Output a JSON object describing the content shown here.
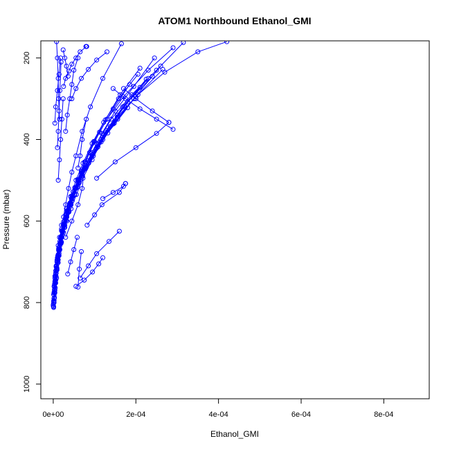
{
  "chart_data": {
    "type": "line",
    "title": "ATOM1 Northbound Ethanol_GMI",
    "xlabel": "Ethanol_GMI",
    "ylabel": "Pressure (mbar)",
    "xlim": [
      -3e-05,
      0.00091
    ],
    "ylim": [
      1036,
      158
    ],
    "y_inverted": true,
    "x_ticks": [
      0,
      0.0002,
      0.0004,
      0.0006,
      0.0008
    ],
    "x_tick_labels": [
      "0e+00",
      "2e-04",
      "4e-04",
      "6e-04",
      "8e-04"
    ],
    "y_ticks": [
      200,
      400,
      600,
      800,
      1000
    ],
    "y_tick_labels": [
      "200",
      "400",
      "600",
      "800",
      "1000"
    ],
    "grid": false,
    "color": "#0000ff",
    "marker": "open-circle",
    "series": [
      {
        "x": [
          1e-06,
          2e-06,
          3e-06,
          4e-06,
          6e-06,
          8e-06,
          1e-05,
          1.3e-05,
          1.6e-05,
          2e-05,
          2.5e-05,
          3e-05,
          3.7e-05,
          4.5e-05,
          5.5e-05,
          7e-05,
          9e-05,
          0.00012,
          0.000165
        ],
        "y": [
          810,
          790,
          770,
          750,
          730,
          710,
          690,
          670,
          650,
          620,
          590,
          560,
          520,
          480,
          440,
          380,
          320,
          250,
          165
        ]
      },
      {
        "x": [
          0.0,
          1e-06,
          2e-06,
          4e-06,
          7e-06,
          1e-05,
          1.4e-05,
          1.9e-05,
          2.6e-05,
          3.5e-05,
          4.7e-05,
          6.2e-05,
          8e-05,
          0.000105,
          0.00014,
          0.00019,
          0.00025,
          0.000315
        ],
        "y": [
          805,
          780,
          760,
          735,
          710,
          690,
          665,
          640,
          610,
          580,
          545,
          505,
          460,
          410,
          350,
          290,
          230,
          162
        ]
      },
      {
        "x": [
          2e-06,
          4e-06,
          6e-06,
          9e-06,
          1.2e-05,
          1.6e-05,
          2.1e-05,
          2.8e-05,
          3.6e-05,
          4.6e-05,
          6e-05,
          7.8e-05,
          0.0001,
          0.00013,
          0.00017,
          0.00023,
          0.00029
        ],
        "y": [
          795,
          770,
          745,
          720,
          695,
          670,
          640,
          610,
          575,
          540,
          500,
          455,
          405,
          350,
          295,
          230,
          175
        ]
      },
      {
        "x": [
          1e-06,
          3e-06,
          5e-06,
          7e-06,
          1e-05,
          1.4e-05,
          1.9e-05,
          2.5e-05,
          3.3e-05,
          4.3e-05,
          5.6e-05,
          7.2e-05,
          9.4e-05,
          0.00012,
          0.000155,
          0.000205,
          0.00027,
          0.00035,
          0.00042
        ],
        "y": [
          800,
          775,
          752,
          728,
          704,
          680,
          655,
          628,
          600,
          570,
          535,
          495,
          450,
          400,
          345,
          290,
          235,
          185,
          160
        ]
      },
      {
        "x": [
          3e-06,
          5e-06,
          8e-06,
          1.2e-05,
          1.7e-05,
          2.3e-05,
          3.1e-05,
          4.1e-05,
          5.4e-05,
          7e-05,
          9.2e-05,
          0.000118,
          0.00015,
          0.000195,
          0.000245
        ],
        "y": [
          760,
          735,
          710,
          682,
          655,
          625,
          592,
          558,
          520,
          480,
          435,
          385,
          330,
          270,
          200
        ]
      },
      {
        "x": [
          2e-06,
          4e-06,
          6e-06,
          9e-06,
          1.3e-05,
          1.8e-05,
          2.5e-05,
          3.4e-05,
          4.5e-05,
          5.9e-05,
          7.6e-05,
          9.8e-05,
          0.000126,
          0.000162,
          0.00021
        ],
        "y": [
          775,
          748,
          722,
          696,
          668,
          640,
          608,
          575,
          538,
          498,
          455,
          405,
          352,
          290,
          225
        ]
      },
      {
        "x": [
          4e-06,
          7e-06,
          1.1e-05,
          1.6e-05,
          2.2e-05,
          3e-05,
          4e-05,
          5.2e-05,
          6.8e-05,
          8.8e-05,
          0.000112,
          0.000145,
          0.000185
        ],
        "y": [
          740,
          712,
          685,
          655,
          624,
          592,
          556,
          518,
          478,
          432,
          382,
          325,
          265
        ]
      },
      {
        "x": [
          3e-06,
          6e-06,
          9e-06,
          1.3e-05,
          1.8e-05,
          2.4e-05,
          3.2e-05,
          4.2e-05,
          5.5e-05,
          7.2e-05,
          9.4e-05,
          0.000122,
          0.000158,
          0.000205
        ],
        "y": [
          755,
          728,
          700,
          672,
          642,
          610,
          576,
          540,
          500,
          458,
          410,
          358,
          300,
          240
        ]
      },
      {
        "x": [
          1e-05,
          1.5e-05,
          2.2e-05,
          3.1e-05,
          4.3e-05,
          5.8e-05,
          7.8e-05,
          0.000104,
          0.000138,
          0.00018,
          0.00024
        ],
        "y": [
          700,
          668,
          634,
          598,
          560,
          518,
          472,
          422,
          368,
          308,
          245
        ]
      },
      {
        "x": [
          8e-06,
          1.3e-05,
          1.9e-05,
          2.7e-05,
          3.8e-05,
          5.2e-05,
          7e-05,
          9.4e-05,
          0.000126,
          0.000168,
          0.000225
        ],
        "y": [
          715,
          684,
          650,
          614,
          576,
          534,
          488,
          438,
          382,
          320,
          252
        ]
      },
      {
        "x": [
          1.2e-05,
          2e-05,
          3e-05,
          4.4e-05,
          6.2e-05,
          8.5e-05,
          0.000116,
          0.000156,
          0.00021
        ],
        "y": [
          660,
          624,
          585,
          545,
          500,
          452,
          400,
          340,
          272
        ]
      },
      {
        "x": [
          6e-06,
          1e-05,
          1.5e-05,
          2.2e-05,
          3.1e-05,
          4.3e-05,
          5.9e-05,
          8e-05,
          0.000108,
          0.000145,
          0.000195,
          0.00026
        ],
        "y": [
          730,
          700,
          668,
          634,
          598,
          558,
          515,
          468,
          418,
          362,
          300,
          220
        ]
      },
      {
        "x": [
          1.5e-05,
          2.5e-05,
          3.8e-05,
          5.5e-05,
          7.8e-05,
          0.000108,
          0.000148,
          0.0002,
          0.000265
        ],
        "y": [
          640,
          602,
          562,
          518,
          470,
          418,
          360,
          295,
          228
        ]
      },
      {
        "x": [
          2e-05,
          3.2e-05,
          4.8e-05,
          6.8e-05,
          9.4e-05,
          0.000128,
          0.000172,
          0.00023
        ],
        "y": [
          610,
          570,
          528,
          482,
          432,
          378,
          318,
          250
        ]
      },
      {
        "x": [
          5e-06,
          9e-06,
          1.4e-05,
          2e-05,
          2.8e-05,
          3.8e-05,
          5.2e-05,
          7.1e-05,
          9.7e-05,
          0.000132,
          0.00018
        ],
        "y": [
          745,
          716,
          685,
          652,
          616,
          578,
          536,
          490,
          440,
          384,
          322
        ]
      },
      {
        "x": [
          7e-06,
          1.1e-05,
          1.6e-05,
          2.3e-05,
          3.3e-05,
          4.6e-05,
          6.3e-05,
          8.6e-05,
          0.000116,
          0.000156
        ],
        "y": [
          722,
          692,
          660,
          626,
          590,
          550,
          506,
          458,
          406,
          350
        ]
      },
      {
        "x": [
          1e-06,
          2e-06,
          3e-06,
          4e-06,
          5e-06,
          6e-06,
          8e-06
        ],
        "y": [
          812,
          800,
          788,
          776,
          764,
          752,
          740
        ]
      },
      {
        "x": [
          0.0,
          1e-06,
          2e-06,
          3e-06,
          5e-06,
          7e-06,
          9e-06,
          1.2e-05
        ],
        "y": [
          808,
          796,
          782,
          768,
          752,
          736,
          720,
          702
        ]
      },
      {
        "x": [
          2e-06,
          2e-06,
          3e-06,
          5e-06,
          6e-06,
          8e-06,
          1.1e-05,
          1.4e-05,
          1.8e-05
        ],
        "y": [
          790,
          776,
          762,
          746,
          730,
          712,
          694,
          674,
          652
        ]
      },
      {
        "x": [
          5.5e-05,
          7.5e-05,
          9.5e-05,
          0.00011,
          0.00012
        ],
        "y": [
          760,
          745,
          725,
          705,
          690
        ]
      },
      {
        "x": [
          6.5e-05,
          8.5e-05,
          0.000105,
          0.000135,
          0.00016
        ],
        "y": [
          740,
          710,
          680,
          650,
          625
        ]
      },
      {
        "x": [
          6e-05,
          6.3e-05,
          6.8e-05
        ],
        "y": [
          762,
          718,
          675
        ]
      },
      {
        "x": [
          8.2e-05,
          0.0001,
          0.000118,
          0.00016,
          0.000175
        ],
        "y": [
          610,
          585,
          560,
          530,
          508
        ]
      },
      {
        "x": [
          0.00012,
          0.000145,
          0.00017,
          0.000175
        ],
        "y": [
          545,
          530,
          515,
          508
        ]
      },
      {
        "x": [
          0.000105,
          0.00015,
          0.0002,
          0.00025,
          0.00028
        ],
        "y": [
          495,
          455,
          420,
          385,
          358
        ]
      },
      {
        "x": [
          0.00029,
          0.00025,
          0.00021,
          0.000175,
          0.000145
        ],
        "y": [
          375,
          350,
          325,
          300,
          275
        ]
      },
      {
        "x": [
          0.00028,
          0.00024,
          0.0002,
          0.00017
        ],
        "y": [
          358,
          330,
          300,
          275
        ]
      },
      {
        "x": [
          6e-05,
          6.5e-05,
          7e-05,
          8e-05
        ],
        "y": [
          470,
          440,
          400,
          350
        ]
      },
      {
        "x": [
          2.5e-05,
          3e-05,
          3.8e-05,
          4.5e-05,
          5.5e-05,
          6.5e-05,
          8e-05
        ],
        "y": [
          270,
          250,
          232,
          215,
          200,
          185,
          172
        ]
      },
      {
        "x": [
          8e-05,
          7.9e-05,
          8.1e-05
        ],
        "y": [
          172,
          172,
          172
        ]
      },
      {
        "x": [
          3e-05,
          4.5e-05,
          6e-05,
          7e-05,
          7.5e-05
        ],
        "y": [
          640,
          600,
          560,
          520,
          470
        ]
      },
      {
        "x": [
          3.5e-05,
          4.2e-05,
          5e-05,
          5.8e-05
        ],
        "y": [
          730,
          700,
          670,
          640
        ]
      },
      {
        "x": [
          4e-06,
          6e-06,
          1e-05,
          1.4e-05,
          1.8e-05
        ],
        "y": [
          360,
          320,
          280,
          240,
          200
        ]
      },
      {
        "x": [
          8e-06,
          1e-05,
          1.2e-05,
          1.3e-05,
          1.5e-05
        ],
        "y": [
          160,
          200,
          250,
          300,
          350
        ]
      },
      {
        "x": [
          1e-05,
          1.2e-05,
          1.4e-05,
          1.6e-05,
          1.9e-05
        ],
        "y": [
          420,
          380,
          330,
          280,
          210
        ]
      },
      {
        "x": [
          1.2e-05,
          1.5e-05,
          1.8e-05,
          2.1e-05,
          2.4e-05
        ],
        "y": [
          500,
          450,
          400,
          350,
          300
        ]
      },
      {
        "x": [
          3e-05,
          3.4e-05,
          4e-05,
          4.5e-05,
          5e-05,
          6e-05
        ],
        "y": [
          380,
          340,
          300,
          265,
          230,
          200
        ]
      },
      {
        "x": [
          2.4e-05,
          2.8e-05,
          3.2e-05,
          3.6e-05
        ],
        "y": [
          180,
          200,
          220,
          245
        ]
      },
      {
        "x": [
          4.5e-05,
          5.5e-05,
          6.8e-05,
          8.5e-05,
          0.000105,
          0.00013
        ],
        "y": [
          300,
          275,
          250,
          228,
          205,
          185
        ]
      }
    ]
  }
}
